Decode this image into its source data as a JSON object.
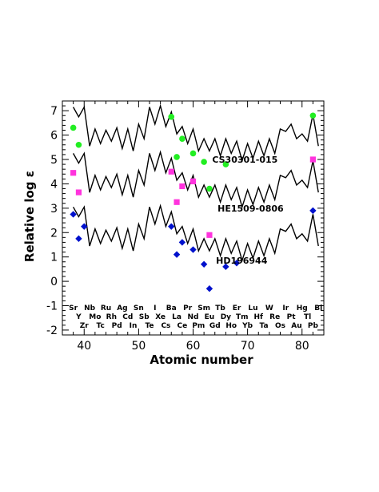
{
  "chart_data": {
    "type": "scatter",
    "xlabel": "Atomic number",
    "ylabel": "Relative log ε",
    "xlim": [
      36,
      84
    ],
    "ylim": [
      -2.2,
      7.4
    ],
    "xticks": [
      40,
      50,
      60,
      70,
      80
    ],
    "yticks": [
      -2,
      -1,
      0,
      1,
      2,
      3,
      4,
      5,
      6,
      7
    ],
    "element_labels": {
      "row1": [
        {
          "z": 38,
          "symbol": "Sr"
        },
        {
          "z": 41,
          "symbol": "Nb"
        },
        {
          "z": 44,
          "symbol": "Ru"
        },
        {
          "z": 47,
          "symbol": "Ag"
        },
        {
          "z": 50,
          "symbol": "Sn"
        },
        {
          "z": 53,
          "symbol": "I"
        },
        {
          "z": 56,
          "symbol": "Ba"
        },
        {
          "z": 59,
          "symbol": "Pr"
        },
        {
          "z": 62,
          "symbol": "Sm"
        },
        {
          "z": 65,
          "symbol": "Tb"
        },
        {
          "z": 68,
          "symbol": "Er"
        },
        {
          "z": 71,
          "symbol": "Lu"
        },
        {
          "z": 74,
          "symbol": "W"
        },
        {
          "z": 77,
          "symbol": "Ir"
        },
        {
          "z": 80,
          "symbol": "Hg"
        },
        {
          "z": 83,
          "symbol": "Bi"
        }
      ],
      "row2": [
        {
          "z": 39,
          "symbol": "Y"
        },
        {
          "z": 42,
          "symbol": "Mo"
        },
        {
          "z": 45,
          "symbol": "Rh"
        },
        {
          "z": 48,
          "symbol": "Cd"
        },
        {
          "z": 51,
          "symbol": "Sb"
        },
        {
          "z": 54,
          "symbol": "Xe"
        },
        {
          "z": 57,
          "symbol": "La"
        },
        {
          "z": 60,
          "symbol": "Nd"
        },
        {
          "z": 63,
          "symbol": "Eu"
        },
        {
          "z": 66,
          "symbol": "Dy"
        },
        {
          "z": 69,
          "symbol": "Tm"
        },
        {
          "z": 72,
          "symbol": "Hf"
        },
        {
          "z": 75,
          "symbol": "Re"
        },
        {
          "z": 78,
          "symbol": "Pt"
        },
        {
          "z": 81,
          "symbol": "Tl"
        }
      ],
      "row3": [
        {
          "z": 40,
          "symbol": "Zr"
        },
        {
          "z": 43,
          "symbol": "Tc"
        },
        {
          "z": 46,
          "symbol": "Pd"
        },
        {
          "z": 49,
          "symbol": "In"
        },
        {
          "z": 52,
          "symbol": "Te"
        },
        {
          "z": 55,
          "symbol": "Cs"
        },
        {
          "z": 58,
          "symbol": "Ce"
        },
        {
          "z": 61,
          "symbol": "Pm"
        },
        {
          "z": 64,
          "symbol": "Gd"
        },
        {
          "z": 67,
          "symbol": "Ho"
        },
        {
          "z": 70,
          "symbol": "Yb"
        },
        {
          "z": 73,
          "symbol": "Ta"
        },
        {
          "z": 76,
          "symbol": "Os"
        },
        {
          "z": 79,
          "symbol": "Au"
        },
        {
          "z": 82,
          "symbol": "Pb"
        }
      ]
    },
    "solar_r_pattern": {
      "x": [
        38,
        39,
        40,
        41,
        42,
        43,
        44,
        45,
        46,
        47,
        48,
        49,
        50,
        51,
        52,
        53,
        54,
        55,
        56,
        57,
        58,
        59,
        60,
        61,
        62,
        63,
        64,
        65,
        66,
        67,
        68,
        69,
        70,
        71,
        72,
        73,
        74,
        75,
        76,
        77,
        78,
        79,
        80,
        81,
        82,
        83
      ],
      "y": [
        2.3,
        1.9,
        2.3,
        0.7,
        1.4,
        0.8,
        1.35,
        0.9,
        1.45,
        0.6,
        1.4,
        0.5,
        1.6,
        1.0,
        2.3,
        1.6,
        2.35,
        1.5,
        2.1,
        1.2,
        1.5,
        0.8,
        1.4,
        0.5,
        1.0,
        0.5,
        1.0,
        0.3,
        1.0,
        0.4,
        0.9,
        0.1,
        0.8,
        0.2,
        0.9,
        0.3,
        1.0,
        0.4,
        1.4,
        1.3,
        1.6,
        1.0,
        1.2,
        0.9,
        2.0,
        0.7
      ]
    },
    "series": [
      {
        "name": "CS30301-015",
        "marker": "circle",
        "color": "#22ee22",
        "pattern_offset": 4.85,
        "x": [
          38,
          39,
          56,
          57,
          58,
          60,
          62,
          63,
          66,
          82
        ],
        "y": [
          6.3,
          5.6,
          6.75,
          5.1,
          5.85,
          5.25,
          4.9,
          3.8,
          4.8,
          6.8
        ]
      },
      {
        "name": "HE1509-0806",
        "marker": "square",
        "color": "#ff33dd",
        "pattern_offset": 2.95,
        "x": [
          38,
          39,
          56,
          57,
          58,
          60,
          63,
          82
        ],
        "y": [
          4.45,
          3.65,
          4.5,
          3.25,
          3.9,
          4.1,
          1.9,
          5.0
        ]
      },
      {
        "name": "HD196944",
        "marker": "diamond",
        "color": "#0011cc",
        "pattern_offset": 0.75,
        "x": [
          38,
          39,
          40,
          56,
          57,
          58,
          60,
          62,
          63,
          66,
          68,
          82
        ],
        "y": [
          2.75,
          1.75,
          2.25,
          2.25,
          1.1,
          1.6,
          1.3,
          0.7,
          -0.3,
          0.6,
          0.75,
          2.9
        ]
      }
    ]
  }
}
